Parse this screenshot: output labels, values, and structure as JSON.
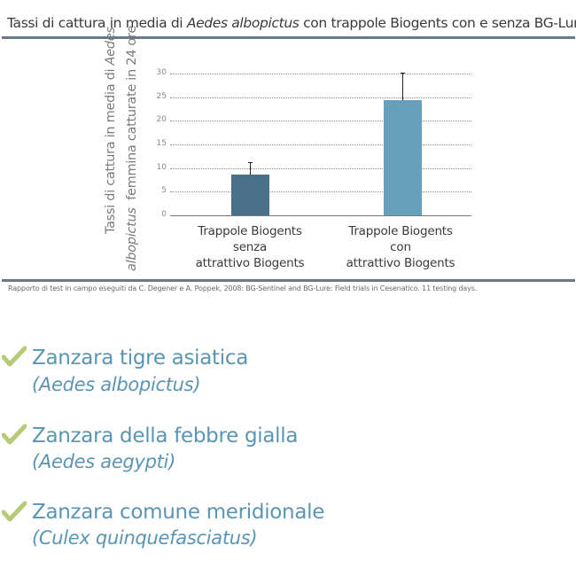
{
  "header": {
    "title_pre": "Tassi di cattura in media di ",
    "title_species": "Aedes albopictus",
    "title_post": " con trappole Biogents con e senza BG-Lure"
  },
  "chart_data": {
    "type": "bar",
    "title": "Tassi di cattura in media di Aedes albopictus con trappole Biogents con e senza BG-Lure",
    "ylabel": "Tassi di cattura in media di Aedes albopictus femmina catturate in 24 ore",
    "ylabel_line1_pre": "Tassi di cattura in media di ",
    "ylabel_line1_it": "Aedes",
    "ylabel_line2_it": "albopictus",
    "ylabel_line2_post": "  femmina catturate in 24 ore",
    "xlabel": "",
    "categories": [
      "Trappole Biogents senza attrattivo Biogents",
      "Trappole Biogents con attrattivo Biogents"
    ],
    "category_lines": [
      [
        "Trappole Biogents",
        "senza",
        "attrattivo Biogents"
      ],
      [
        "Trappole Biogents",
        "con",
        "attrattivo Biogents"
      ]
    ],
    "values": [
      8.7,
      24.4
    ],
    "error_upper": [
      11.3,
      30.2
    ],
    "bar_colors": [
      "#4a7089",
      "#66a1bb"
    ],
    "ylim": [
      0,
      30
    ],
    "yticks": [
      "0",
      "5",
      "10",
      "15",
      "20",
      "25",
      "30"
    ],
    "grid": true,
    "grid_style": "dotted",
    "legend": null
  },
  "footnote": "Rapporto di test in campo eseguiti da C. Degener e A. Poppek, 2008: BG-Sentinel and BG-Lure: Field trials in Cesenatico. 11 testing days.",
  "species_list": [
    {
      "common": "Zanzara tigre asiatica",
      "scientific": "(Aedes albopictus)",
      "icon": "check-icon"
    },
    {
      "common": "Zanzara della febbre gialla",
      "scientific": "(Aedes aegypti)",
      "icon": "check-icon"
    },
    {
      "common": "Zanzara comune meridionale",
      "scientific": "(Culex quinquefasciatus)",
      "icon": "check-icon"
    }
  ],
  "colors": {
    "rule": "#6b7985",
    "accent_text": "#5a95b3",
    "check": "#b6ca78"
  }
}
